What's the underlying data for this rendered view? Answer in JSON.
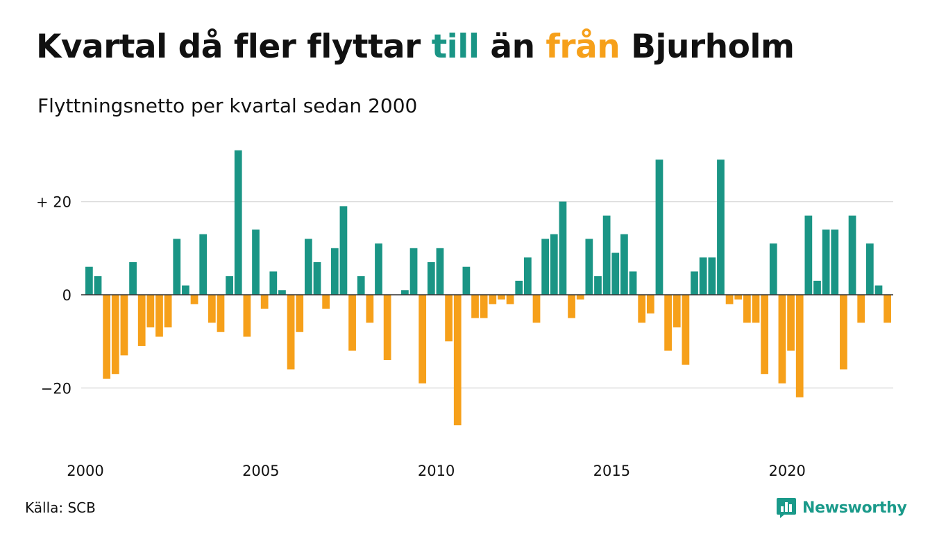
{
  "title": {
    "part1": "Kvartal då fler flyttar ",
    "part2": "till",
    "part3": " än ",
    "part4": "från",
    "part5": " Bjurholm"
  },
  "subtitle": "Flyttningsnetto per kvartal sedan 2000",
  "source": "Källa: SCB",
  "logo": {
    "text": "Newsworthy",
    "icon": "newsworthy-chart-icon"
  },
  "colors": {
    "positive": "#1a9585",
    "negative": "#f6a01a",
    "grid": "#dddddd",
    "text": "#111111"
  },
  "chart_data": {
    "type": "bar",
    "x_start_year": 2000,
    "periods_per_year": 4,
    "x_ticks": [
      "2000",
      "2005",
      "2010",
      "2015",
      "2020"
    ],
    "y_ticks": [
      {
        "value": 20,
        "label": "+ 20"
      },
      {
        "value": 0,
        "label": "0"
      },
      {
        "value": -20,
        "label": "−20"
      }
    ],
    "ylim": [
      -28,
      31
    ],
    "grid": true,
    "legend": "none",
    "values": [
      6,
      4,
      -18,
      -17,
      -13,
      7,
      -11,
      -7,
      -9,
      -7,
      12,
      2,
      -2,
      13,
      -6,
      -8,
      4,
      31,
      -9,
      14,
      -3,
      5,
      1,
      -16,
      -8,
      12,
      7,
      -3,
      10,
      19,
      -12,
      4,
      -6,
      11,
      -14,
      0,
      1,
      10,
      -19,
      7,
      10,
      -10,
      -28,
      6,
      -5,
      -5,
      -2,
      -1,
      -2,
      3,
      8,
      -6,
      12,
      13,
      20,
      -5,
      -1,
      12,
      4,
      17,
      9,
      13,
      5,
      -6,
      -4,
      29,
      -12,
      -7,
      -15,
      5,
      8,
      8,
      29,
      -2,
      -1,
      -6,
      -6,
      -17,
      11,
      -19,
      -12,
      -22,
      17,
      3,
      14,
      14,
      -16,
      17,
      -6,
      11,
      2,
      -6
    ]
  }
}
